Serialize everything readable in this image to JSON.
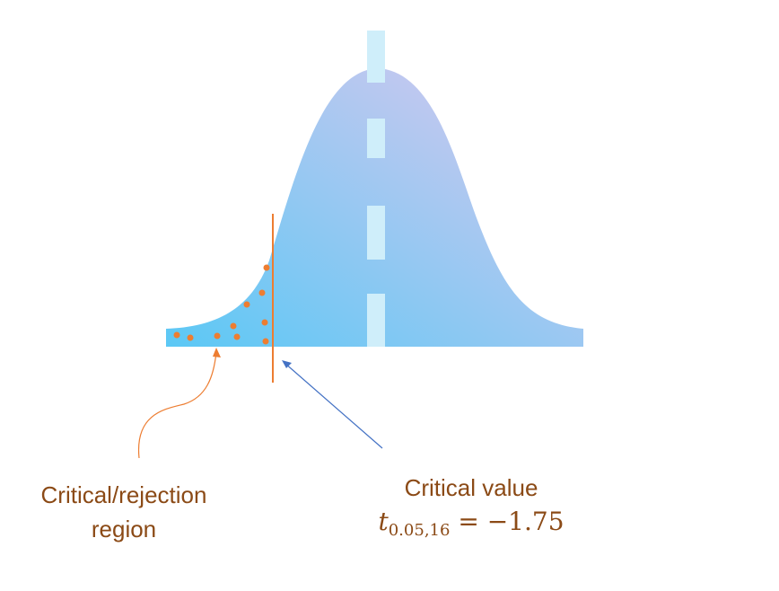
{
  "colors": {
    "label_text": "#8b4a16",
    "critical_line": "#ed7d31",
    "dots": "#ed7d31",
    "curve_left": "#5bc8f5",
    "curve_right": "#dcc8ee",
    "center_dash": "#cfeefa",
    "arrow_blue": "#4472c4",
    "arrow_orange": "#ed7d31"
  },
  "labels": {
    "region_line1": "Critical/rejection",
    "region_line2": "region",
    "critical_title": "Critical value",
    "critical_symbol": "t",
    "critical_subscript": "0.05,16",
    "critical_equals": "= −1.75"
  },
  "icons": {
    "region_pointer": "curved-arrow-icon",
    "critical_pointer": "straight-arrow-icon"
  }
}
